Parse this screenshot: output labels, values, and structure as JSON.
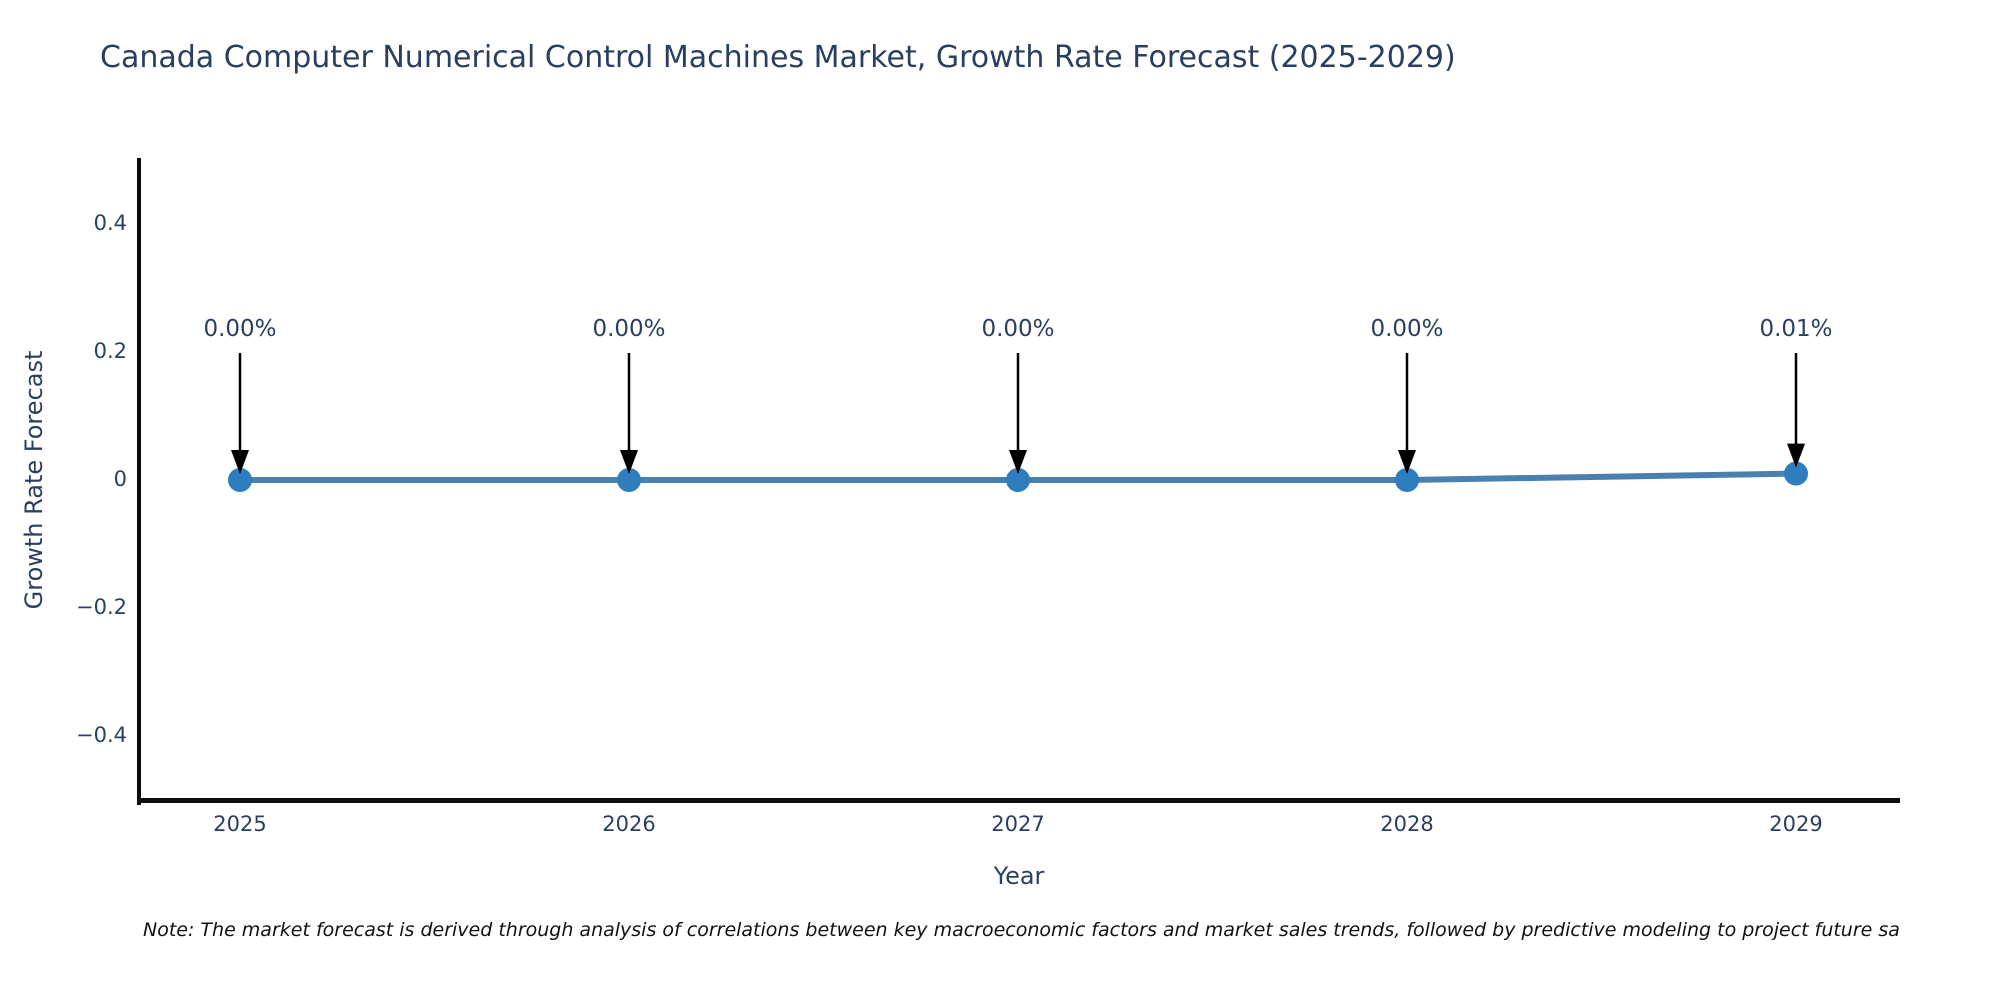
{
  "note": "Note: The market forecast is derived through analysis of correlations between key macroeconomic factors and market sales trends, followed by predictive modeling to project future sa",
  "chart_data": {
    "type": "line",
    "title": "Canada Computer Numerical Control Machines Market, Growth Rate Forecast (2025-2029)",
    "xlabel": "Year",
    "ylabel": "Growth Rate Forecast",
    "categories": [
      "2025",
      "2026",
      "2027",
      "2028",
      "2029"
    ],
    "series": [
      {
        "name": "Growth Rate Forecast",
        "values": [
          0.0,
          0.0,
          0.0,
          0.0,
          0.01
        ],
        "point_labels": [
          "0.00%",
          "0.00%",
          "0.00%",
          "0.00%",
          "0.01%"
        ]
      }
    ],
    "ylim": [
      -0.5,
      0.5
    ],
    "yticks": [
      0.4,
      0.2,
      0,
      -0.2,
      -0.4
    ],
    "ytick_labels": [
      "0.4",
      "0.2",
      "0",
      "−0.2",
      "−0.4"
    ],
    "grid": false,
    "legend": "none",
    "annotations": "downward arrows from labels to markers",
    "colors": {
      "line": "#4a80ad",
      "marker": "#2e7dbe",
      "arrow": "#000000",
      "axis": "#0d0d0d",
      "text": "#2a3f5f"
    }
  }
}
